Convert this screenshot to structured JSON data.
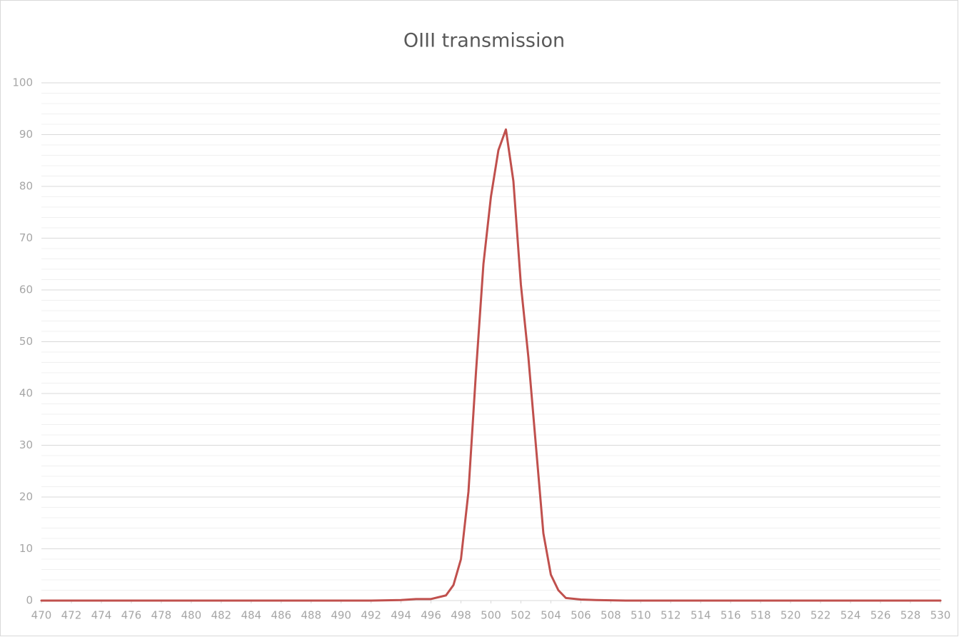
{
  "chart_data": {
    "type": "line",
    "title": "OIII transmission",
    "x": [
      470,
      471,
      472,
      473,
      474,
      475,
      476,
      477,
      478,
      479,
      480,
      481,
      482,
      483,
      484,
      485,
      486,
      487,
      488,
      489,
      490,
      491,
      492,
      493,
      494,
      495,
      496,
      497,
      497.5,
      498,
      498.5,
      499,
      499.5,
      500,
      500.5,
      501,
      501.5,
      502,
      502.5,
      503,
      503.5,
      504,
      504.5,
      505,
      506,
      507,
      508,
      509,
      510,
      511,
      512,
      513,
      514,
      515,
      516,
      517,
      518,
      519,
      520,
      521,
      522,
      523,
      524,
      525,
      526,
      527,
      528,
      529,
      530
    ],
    "values": [
      0,
      0,
      0,
      0,
      0,
      0,
      0,
      0,
      0,
      0,
      0,
      0,
      0,
      0,
      0,
      0,
      0,
      0,
      0,
      0,
      0,
      0,
      0,
      0.05,
      0.1,
      0.3,
      0.3,
      1,
      3,
      8,
      21,
      44,
      65,
      78,
      87,
      91,
      81,
      61,
      47,
      30,
      13,
      5,
      2,
      0.5,
      0.2,
      0.1,
      0.05,
      0,
      0,
      0,
      0,
      0,
      0,
      0,
      0,
      0,
      0,
      0,
      0,
      0,
      0,
      0,
      0,
      0,
      0,
      0,
      0,
      0,
      0
    ],
    "color": "#c0504d",
    "xlim": [
      470,
      530
    ],
    "xticks": [
      470,
      472,
      474,
      476,
      478,
      480,
      482,
      484,
      486,
      488,
      490,
      492,
      494,
      496,
      498,
      500,
      502,
      504,
      506,
      508,
      510,
      512,
      514,
      516,
      518,
      520,
      522,
      524,
      526,
      528,
      530
    ],
    "ylim": [
      0,
      100
    ],
    "yticks": [
      0,
      10,
      20,
      30,
      40,
      50,
      60,
      70,
      80,
      90,
      100
    ],
    "minor_yticks": [
      2,
      4,
      6,
      8,
      12,
      14,
      16,
      18,
      22,
      24,
      26,
      28,
      32,
      34,
      36,
      38,
      42,
      44,
      46,
      48,
      52,
      54,
      56,
      58,
      62,
      64,
      66,
      68,
      72,
      74,
      76,
      78,
      82,
      84,
      86,
      88,
      92,
      94,
      96,
      98
    ],
    "grid": true
  }
}
